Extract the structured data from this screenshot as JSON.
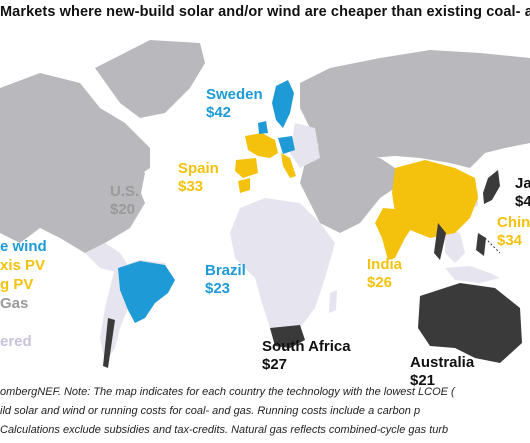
{
  "title": "Markets where new-build solar and/or wind are cheaper than existing coal- and ga",
  "colors": {
    "wind": "#1e9bd7",
    "solar": "#f4c20d",
    "gas": "#9a9a9a",
    "coal": "#3a3a3a",
    "covered_land": "#b9b9bd",
    "other_land": "#e6e4ee"
  },
  "markets": [
    {
      "name": "Sweden",
      "value": "$42",
      "technology": "wind"
    },
    {
      "name": "Spain",
      "value": "$33",
      "technology": "solar"
    },
    {
      "name": "U.S.",
      "value": "$20",
      "technology": "gas"
    },
    {
      "name": "Brazil",
      "value": "$23",
      "technology": "wind"
    },
    {
      "name": "India",
      "value": "$26",
      "technology": "solar"
    },
    {
      "name": "Chin",
      "value": "$34",
      "technology": "solar"
    },
    {
      "name": "Ja",
      "value": "$4",
      "technology": "coal"
    },
    {
      "name": "South Africa",
      "value": "$27",
      "technology": "coal"
    },
    {
      "name": "Australia",
      "value": "$21",
      "technology": "coal"
    }
  ],
  "legend": [
    {
      "label": "e wind",
      "color": "wind"
    },
    {
      "label": "xis PV",
      "color": "solar"
    },
    {
      "label": "g PV",
      "color": "solar"
    },
    {
      "label": "Gas",
      "color": "gas"
    },
    {
      "label": "ered",
      "color": "other_land"
    }
  ],
  "note_lines": [
    "ombergNEF. Note: The map indicates for each country the technology with the lowest LCOE (",
    "ild solar and wind or running costs for coal- and gas. Running costs include a carbon p",
    "Calculations exclude subsidies and tax-credits. Natural gas reflects combined-cycle gas turb"
  ]
}
